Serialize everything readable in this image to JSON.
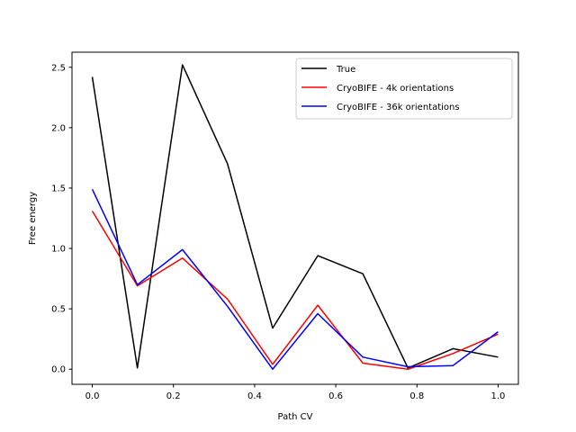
{
  "chart_data": {
    "type": "line",
    "title": "",
    "xlabel": "Path CV",
    "ylabel": "Free energy",
    "xlim": [
      -0.05,
      1.05
    ],
    "ylim": [
      -0.125,
      2.625
    ],
    "xticks": [
      0.0,
      0.2,
      0.4,
      0.6,
      0.8,
      1.0
    ],
    "xtick_labels": [
      "0.0",
      "0.2",
      "0.4",
      "0.6",
      "0.8",
      "1.0"
    ],
    "yticks": [
      0.0,
      0.5,
      1.0,
      1.5,
      2.0,
      2.5
    ],
    "ytick_labels": [
      "0.0",
      "0.5",
      "1.0",
      "1.5",
      "2.0",
      "2.5"
    ],
    "grid": false,
    "legend_position": "top-right",
    "x": [
      0.0,
      0.1111,
      0.2222,
      0.3333,
      0.4444,
      0.5556,
      0.6667,
      0.7778,
      0.8889,
      1.0
    ],
    "series": [
      {
        "name": "True",
        "color": "#000000",
        "values": [
          2.42,
          0.01,
          2.52,
          1.7,
          0.34,
          0.94,
          0.79,
          0.01,
          0.17,
          0.1
        ]
      },
      {
        "name": "CryoBIFE - 4k orientations",
        "color": "#ff0000",
        "values": [
          1.31,
          0.69,
          0.92,
          0.58,
          0.04,
          0.53,
          0.05,
          0.0,
          0.13,
          0.29
        ]
      },
      {
        "name": "CryoBIFE - 36k orientations",
        "color": "#0000ff",
        "values": [
          1.49,
          0.7,
          0.99,
          0.52,
          0.0,
          0.46,
          0.1,
          0.02,
          0.03,
          0.31
        ]
      }
    ]
  }
}
